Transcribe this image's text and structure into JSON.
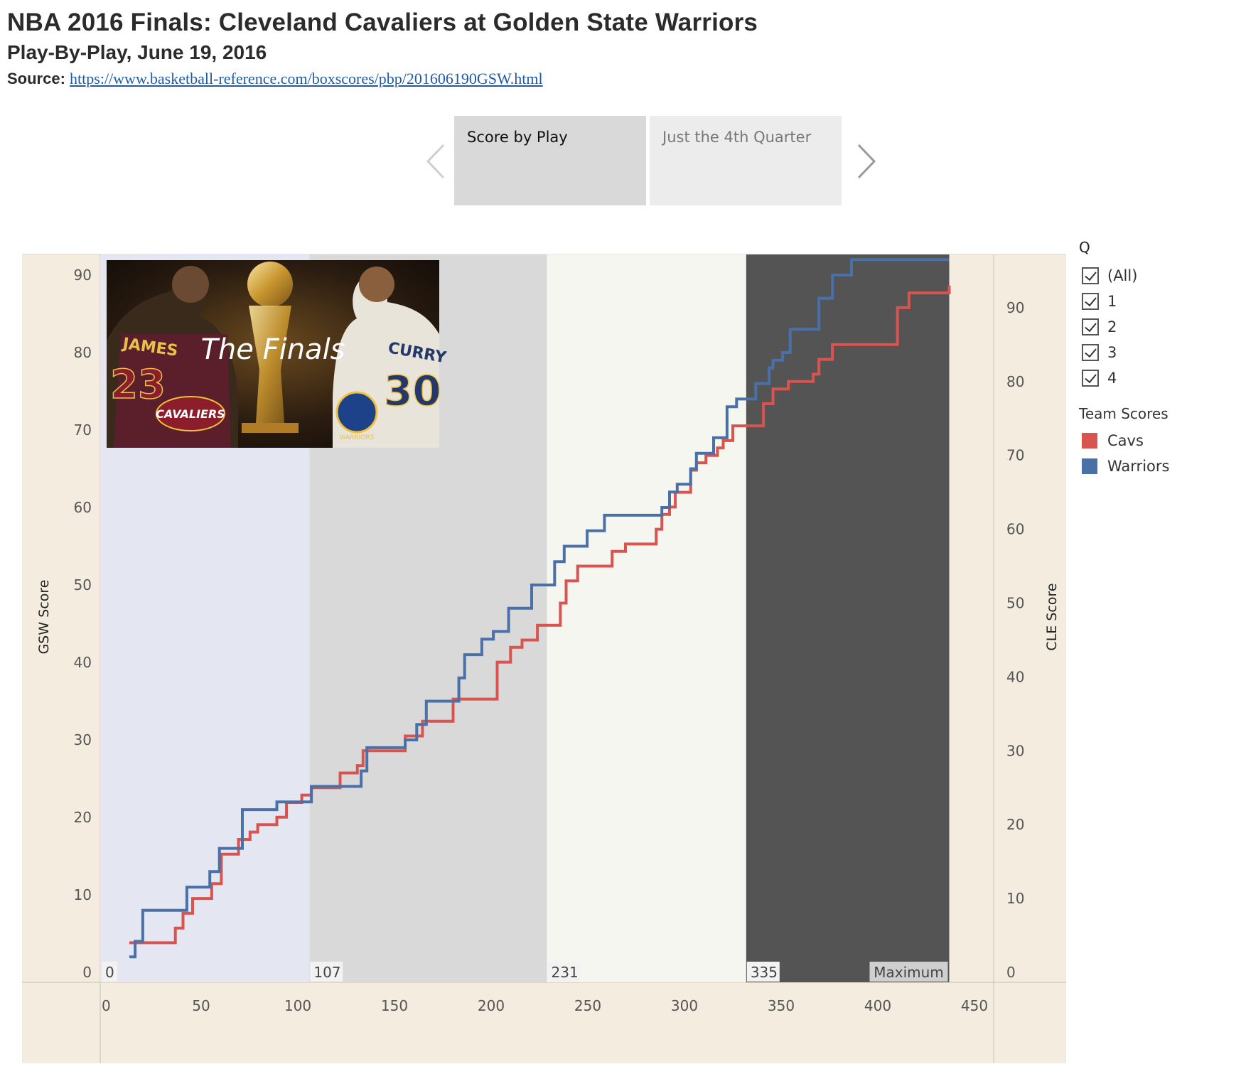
{
  "header": {
    "title": "NBA 2016 Finals: Cleveland Cavaliers at Golden State Warriors",
    "subtitle": "Play-By-Play, June 19, 2016",
    "source_label": "Source:",
    "source_url": "https://www.basketball-reference.com/boxscores/pbp/201606190GSW.html"
  },
  "tabs": [
    {
      "label": "Score by Play",
      "active": true
    },
    {
      "label": "Just the 4th Quarter",
      "active": false
    }
  ],
  "legend": {
    "q_title": "Q",
    "q_items": [
      "(All)",
      "1",
      "2",
      "3",
      "4"
    ],
    "team_title": "Team Scores",
    "teams": [
      {
        "name": "Cavs",
        "color": "#d9534f"
      },
      {
        "name": "Warriors",
        "color": "#4a70a8"
      }
    ]
  },
  "image_banner": {
    "jersey_left": "JAMES",
    "number_left": "23",
    "script_title": "The Finals",
    "jersey_right": "CURRY",
    "number_right": "30",
    "logo_left": "CAVALIERS",
    "logo_right": "WARRIORS"
  },
  "colors": {
    "cavs": "#d9534f",
    "warriors": "#4a70a8",
    "panel_bg": "#f4ecdf",
    "q1_band": "#e4e6f1",
    "q2_band": "#d9d9d9",
    "q3_band": "#f6f6f0",
    "q4_band": "#545454"
  },
  "chart_data": {
    "type": "line",
    "step": true,
    "title": "",
    "xlabel": "",
    "ylabel_left": "GSW Score",
    "ylabel_right": "CLE Score",
    "xlim": [
      0,
      465
    ],
    "ylim_left": [
      0,
      95
    ],
    "ylim_right": [
      0,
      100
    ],
    "x_ticks": [
      0,
      50,
      100,
      150,
      200,
      250,
      300,
      350,
      400,
      450
    ],
    "y_ticks_left": [
      0,
      10,
      20,
      30,
      40,
      50,
      60,
      70,
      80,
      90
    ],
    "y_ticks_right": [
      0,
      10,
      20,
      30,
      40,
      50,
      60,
      70,
      80,
      90
    ],
    "quarter_bands": [
      {
        "q": "1",
        "start": 0,
        "end": 107,
        "label": "0"
      },
      {
        "q": "2",
        "start": 107,
        "end": 231,
        "label": "107"
      },
      {
        "q": "3",
        "start": 231,
        "end": 335,
        "label": "231"
      },
      {
        "q": "4",
        "start": 335,
        "end": 441,
        "label": "335"
      }
    ],
    "max_label": "Maximum",
    "series": [
      {
        "name": "Warriors",
        "axis": "left",
        "x": [
          13,
          16,
          20,
          40,
          43,
          52,
          55,
          60,
          72,
          78,
          90,
          98,
          106,
          108,
          110,
          122,
          134,
          137,
          150,
          157,
          163,
          168,
          178,
          185,
          188,
          194,
          197,
          203,
          211,
          216,
          223,
          231,
          235,
          237,
          240,
          250,
          252,
          261,
          265,
          291,
          295,
          299,
          306,
          309,
          314,
          318,
          325,
          330,
          340,
          343,
          347,
          349,
          354,
          358,
          373,
          376,
          380,
          383,
          390,
          395,
          400,
          441
        ],
        "y": [
          2,
          4,
          8,
          8,
          11,
          11,
          13,
          16,
          21,
          21,
          22,
          22,
          22,
          24,
          24,
          24,
          26,
          29,
          29,
          30,
          32,
          35,
          35,
          38,
          41,
          41,
          43,
          44,
          47,
          47,
          50,
          50,
          53,
          53,
          55,
          55,
          57,
          59,
          59,
          60,
          62,
          63,
          65,
          67,
          67,
          69,
          73,
          74,
          76,
          76,
          78,
          79,
          80,
          83,
          87,
          87,
          90,
          90,
          92,
          92,
          92,
          92
        ]
      },
      {
        "name": "Cavs",
        "axis": "right",
        "x": [
          13,
          20,
          33,
          37,
          41,
          46,
          56,
          61,
          70,
          76,
          80,
          90,
          95,
          103,
          108,
          120,
          123,
          132,
          135,
          155,
          157,
          166,
          175,
          182,
          205,
          212,
          218,
          226,
          231,
          238,
          241,
          247,
          262,
          265,
          272,
          288,
          291,
          295,
          298,
          306,
          309,
          314,
          320,
          323,
          328,
          344,
          349,
          357,
          370,
          373,
          380,
          398,
          414,
          420,
          425,
          441
        ],
        "y": [
          4,
          4,
          4,
          6,
          8,
          10,
          12,
          16,
          18,
          19,
          20,
          21,
          23,
          24,
          25,
          25,
          27,
          28,
          30,
          30,
          32,
          34,
          34,
          37,
          42,
          44,
          45,
          47,
          47,
          50,
          53,
          55,
          55,
          57,
          58,
          60,
          62,
          63,
          65,
          68,
          69,
          70,
          71,
          72,
          74,
          77,
          79,
          80,
          81,
          83,
          85,
          85,
          90,
          92,
          92,
          93
        ]
      }
    ]
  }
}
